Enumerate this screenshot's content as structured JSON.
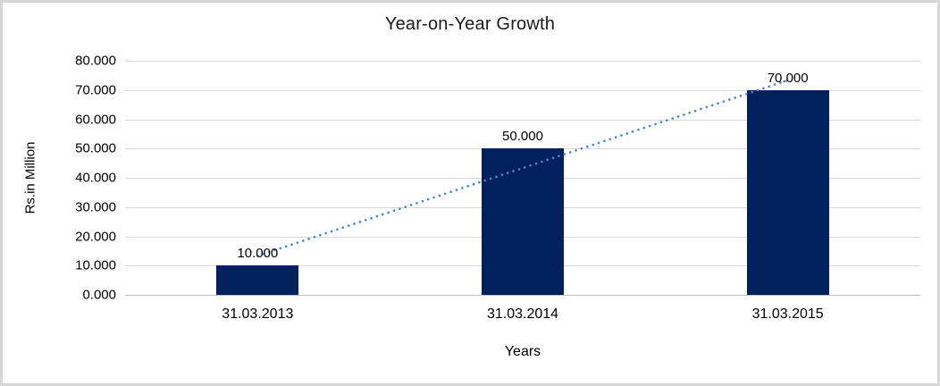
{
  "chart_data": {
    "type": "bar",
    "title": "Year-on-Year Growth",
    "xlabel": "Years",
    "ylabel": "Rs.in Million",
    "categories": [
      "31.03.2013",
      "31.03.2014",
      "31.03.2015"
    ],
    "values": [
      10,
      50,
      70
    ],
    "data_labels": [
      "10.000",
      "50.000",
      "70.000"
    ],
    "ytick_labels": [
      "0.000",
      "10.000",
      "20.000",
      "30.000",
      "40.000",
      "50.000",
      "60.000",
      "70.000",
      "80.000"
    ],
    "ylim": [
      0,
      80
    ],
    "ytick_step": 10,
    "grid": true,
    "legend_position": "none",
    "bar_color": "#00215e",
    "gridline_color": "#d9d9d9",
    "axis_line_color": "#bfbfbf",
    "trendline": {
      "type": "linear",
      "style": "dotted",
      "color": "#4a86c8"
    }
  }
}
